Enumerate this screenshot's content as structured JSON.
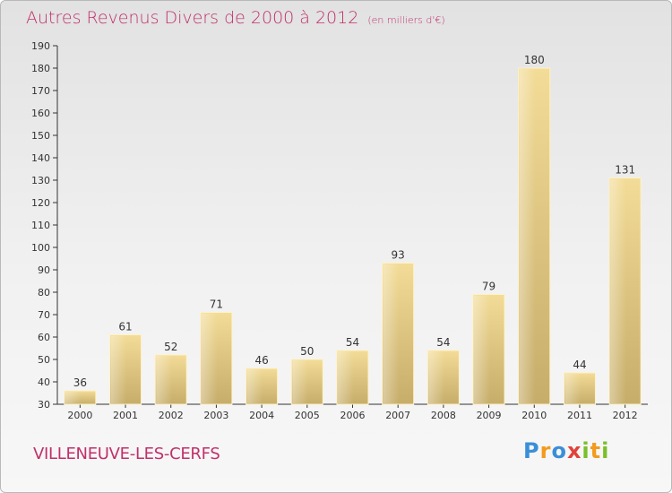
{
  "header": {
    "title": "Autres Revenus Divers de 2000 à 2012",
    "subtitle": "(en milliers d'€)"
  },
  "footer": {
    "place": "VILLENEUVE-LES-CERFS",
    "logo": "Proxiti",
    "logo_letters": [
      {
        "ch": "P",
        "color": "#3a8fd8"
      },
      {
        "ch": "r",
        "color": "#f29b1d"
      },
      {
        "ch": "o",
        "color": "#3a8fd8"
      },
      {
        "ch": "x",
        "color": "#e2413a"
      },
      {
        "ch": "i",
        "color": "#7bbf2a"
      },
      {
        "ch": "t",
        "color": "#f29b1d"
      },
      {
        "ch": "i",
        "color": "#7bbf2a"
      }
    ]
  },
  "chart_data": {
    "type": "bar",
    "categories": [
      "2000",
      "2001",
      "2002",
      "2003",
      "2004",
      "2005",
      "2006",
      "2007",
      "2008",
      "2009",
      "2010",
      "2011",
      "2012"
    ],
    "values": [
      36,
      61,
      52,
      71,
      46,
      50,
      54,
      93,
      54,
      79,
      180,
      44,
      131
    ],
    "ylim": [
      30,
      190
    ],
    "yticks": [
      30,
      40,
      50,
      60,
      70,
      80,
      90,
      100,
      110,
      120,
      130,
      140,
      150,
      160,
      170,
      180,
      190
    ],
    "grid": false,
    "bar_color": "#e4c97e"
  }
}
